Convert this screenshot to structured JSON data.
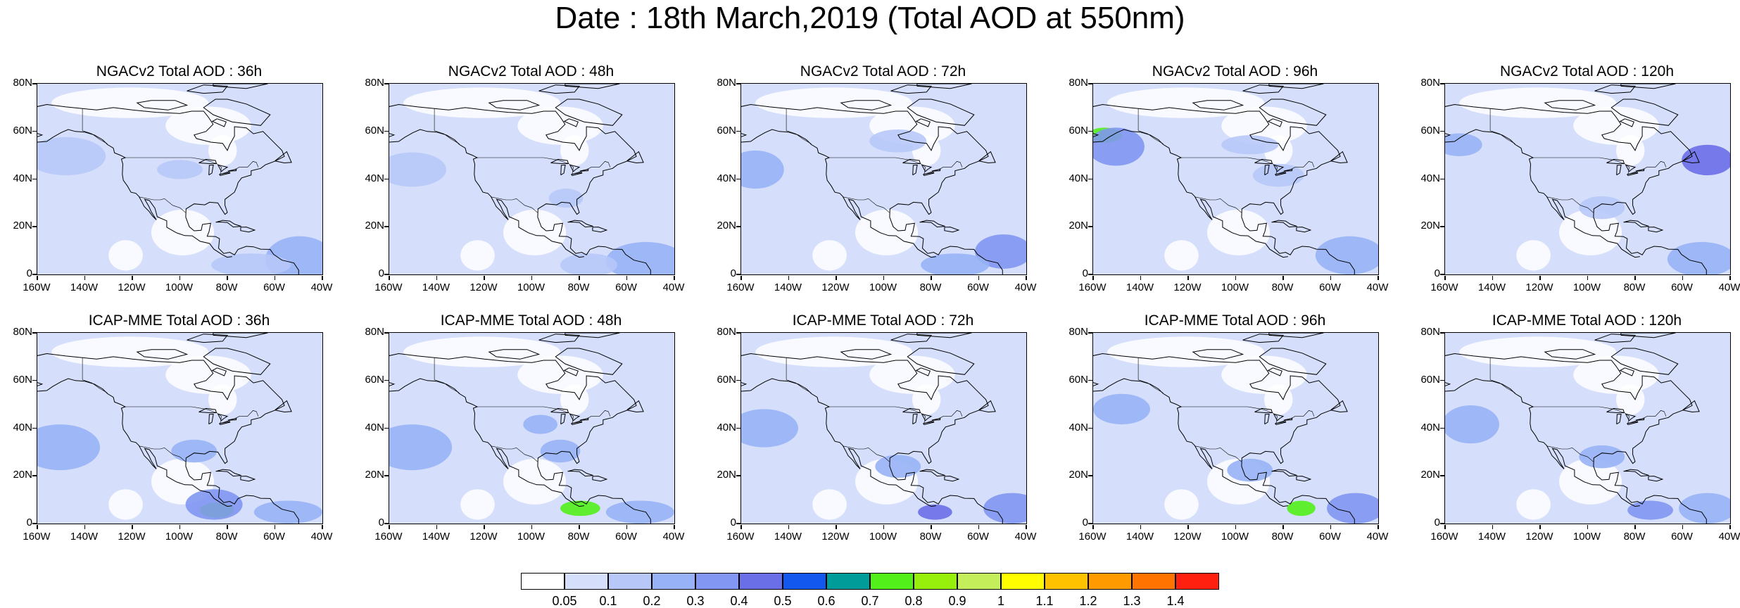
{
  "title": "Date : 18th March,2019 (Total AOD at 550nm)",
  "axes": {
    "lat_labels": [
      "80N",
      "60N",
      "40N",
      "20N",
      "0"
    ],
    "lon_labels": [
      "160W",
      "140W",
      "120W",
      "100W",
      "80W",
      "60W",
      "40W"
    ]
  },
  "panels": [
    {
      "title": "NGACv2 Total AOD : 36h",
      "row": 0,
      "col": 0
    },
    {
      "title": "NGACv2 Total AOD : 48h",
      "row": 0,
      "col": 1
    },
    {
      "title": "NGACv2 Total AOD : 72h",
      "row": 0,
      "col": 2
    },
    {
      "title": "NGACv2 Total AOD : 96h",
      "row": 0,
      "col": 3
    },
    {
      "title": "NGACv2 Total AOD : 120h",
      "row": 0,
      "col": 4
    },
    {
      "title": "ICAP-MME Total AOD : 36h",
      "row": 1,
      "col": 0
    },
    {
      "title": "ICAP-MME Total AOD : 48h",
      "row": 1,
      "col": 1
    },
    {
      "title": "ICAP-MME Total AOD : 72h",
      "row": 1,
      "col": 2
    },
    {
      "title": "ICAP-MME Total AOD : 96h",
      "row": 1,
      "col": 3
    },
    {
      "title": "ICAP-MME Total AOD : 120h",
      "row": 1,
      "col": 4
    }
  ],
  "colorbar": {
    "labels": [
      "0.05",
      "0.1",
      "0.2",
      "0.3",
      "0.4",
      "0.5",
      "0.6",
      "0.7",
      "0.8",
      "0.9",
      "1",
      "1.1",
      "1.2",
      "1.3",
      "1.4"
    ],
    "colors": [
      "#ffffff",
      "#d5dffb",
      "#b7c8f8",
      "#97b2f6",
      "#8197f1",
      "#6a6ee7",
      "#1258ef",
      "#009c99",
      "#52ef1a",
      "#97f00c",
      "#c5ef5a",
      "#fffd00",
      "#ffc200",
      "#ff9b00",
      "#ff7400",
      "#ff2010"
    ]
  }
}
